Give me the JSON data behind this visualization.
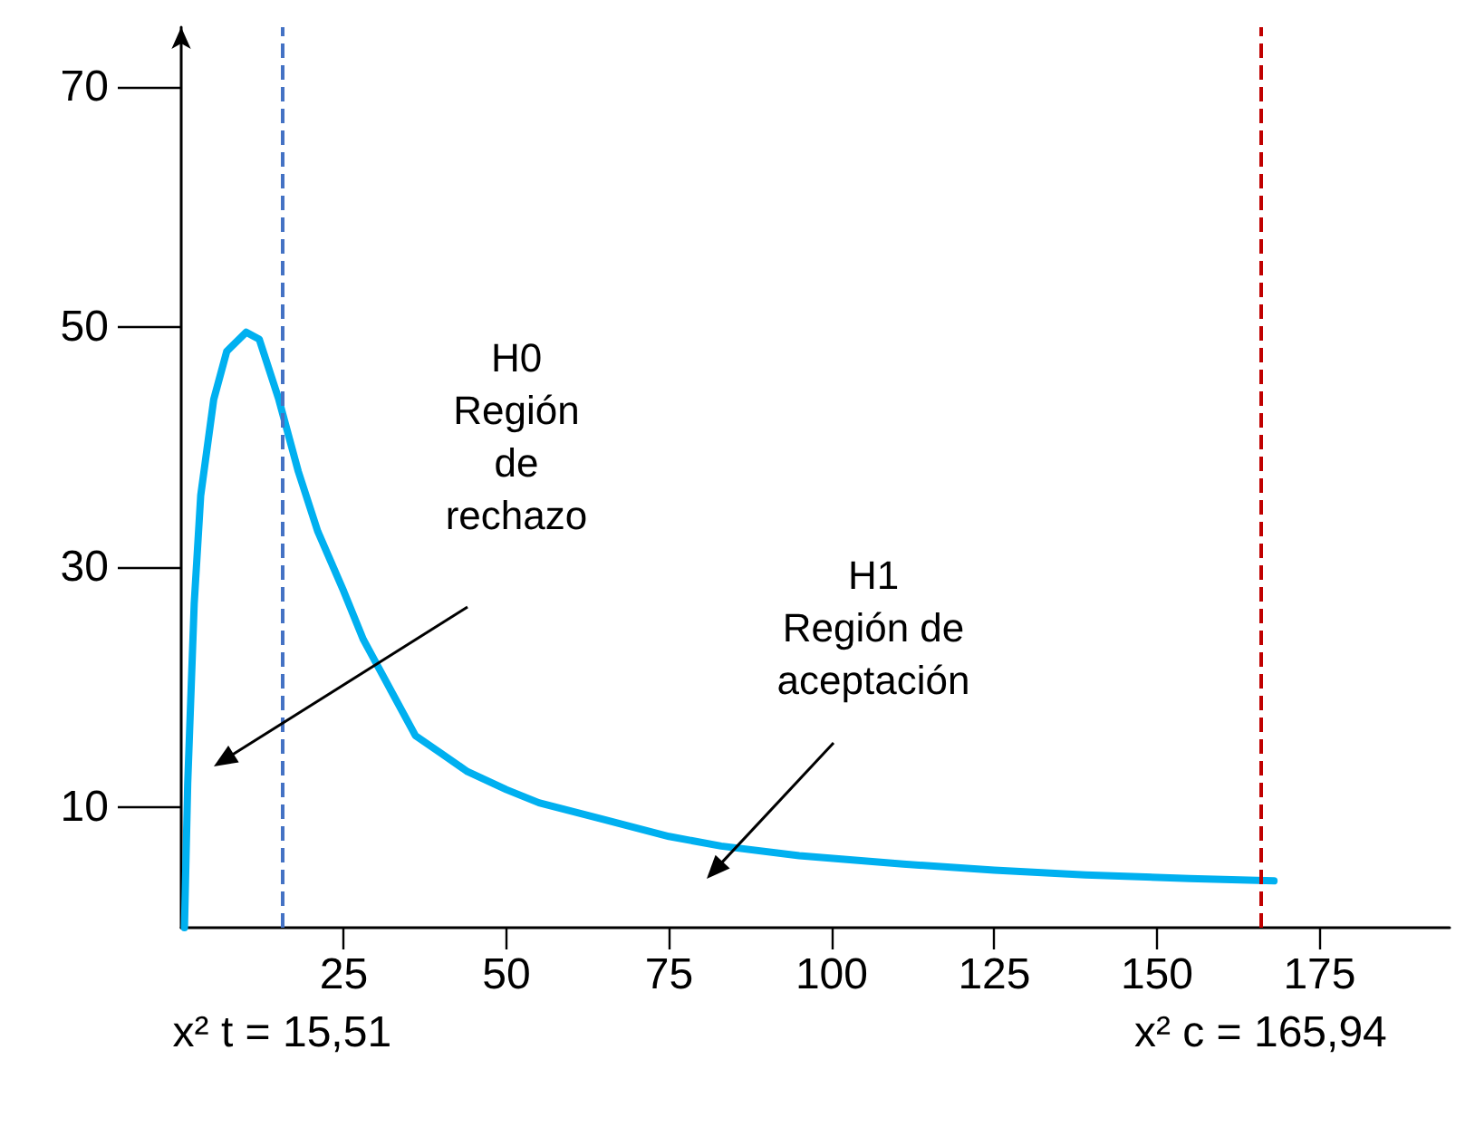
{
  "chart_data": {
    "type": "line",
    "xlim": [
      0,
      195
    ],
    "ylim": [
      0,
      75
    ],
    "xticks": [
      25,
      50,
      75,
      100,
      125,
      150,
      175
    ],
    "yticks": [
      10,
      30,
      50,
      70
    ],
    "grid": false,
    "marker": "none",
    "line_style": "solid",
    "series": [
      {
        "color": "#00b0f0",
        "x": [
          0.5,
          1,
          2,
          3,
          5,
          7,
          10,
          12,
          15,
          18,
          21,
          25,
          28,
          32,
          36,
          40,
          44,
          50,
          55,
          65,
          75,
          83,
          95,
          111,
          125,
          139,
          155,
          168
        ],
        "values": [
          0,
          12,
          27,
          36,
          44,
          48,
          49.6,
          49,
          44,
          38,
          33,
          28,
          24,
          20,
          16,
          14.5,
          13,
          11.5,
          10.4,
          9,
          7.6,
          6.8,
          6,
          5.3,
          4.8,
          4.4,
          4.1,
          3.9
        ]
      }
    ],
    "ref_lines": [
      {
        "axis": "x",
        "value": 15.51,
        "label": "x² t = 15,51",
        "color": "#4472c4",
        "line_style": "dashed"
      },
      {
        "axis": "x",
        "value": 165.94,
        "label": "x² c = 165,94",
        "color": "#c00000",
        "line_style": "dashed"
      }
    ],
    "annotations": [
      "H0\nRegión\nde\nrechazo",
      "H1\nRegión de\naceptación"
    ]
  }
}
